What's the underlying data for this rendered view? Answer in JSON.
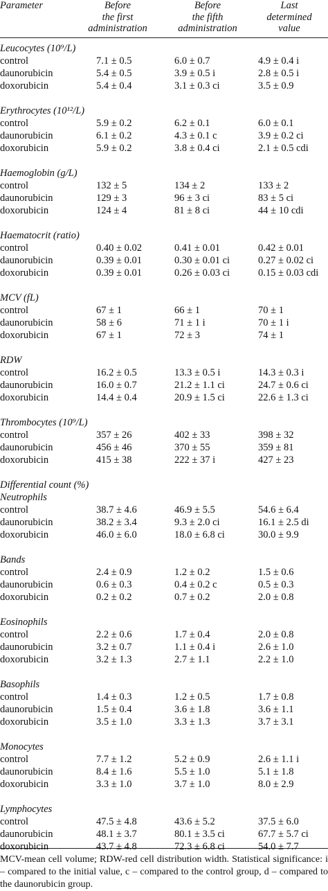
{
  "header": {
    "parameter": "Parameter",
    "columns": [
      [
        "Before",
        "the first",
        "administration"
      ],
      [
        "Before",
        "the fifth",
        "administration"
      ],
      [
        "Last",
        "determined",
        "value"
      ]
    ]
  },
  "sections": [
    {
      "title": "Leucocytes (10⁹/L)",
      "rows": [
        [
          "control",
          "7.1 ± 0.5",
          "6.0 ± 0.7",
          "4.9 ± 0.4 i"
        ],
        [
          "daunorubicin",
          "5.4 ± 0.5",
          "3.9 ± 0.5 i",
          "2.8 ± 0.5 i"
        ],
        [
          "doxorubicin",
          "5.4 ± 0.4",
          "3.1 ± 0.3 ci",
          "3.5 ± 0.9"
        ]
      ]
    },
    {
      "title": "Erythrocytes (10¹²/L)",
      "rows": [
        [
          "control",
          "5.9 ± 0.2",
          "6.2 ± 0.1",
          "6.0 ± 0.1"
        ],
        [
          "daunorubicin",
          "6.1 ± 0.2",
          "4.3 ± 0.1 c",
          "3.9 ± 0.2 ci"
        ],
        [
          "doxorubicin",
          "5.9 ± 0.2",
          "3.8 ± 0.4 ci",
          "2.1 ± 0.5 cdi"
        ]
      ]
    },
    {
      "title": "Haemoglobin (g/L)",
      "rows": [
        [
          "control",
          "132 ± 5",
          "134 ± 2",
          "133 ± 2"
        ],
        [
          "daunorubicin",
          "129 ± 3",
          "96 ± 3 ci",
          "83 ± 5 ci"
        ],
        [
          "doxorubicin",
          "124 ± 4",
          "81 ± 8 ci",
          "44 ± 10 cdi"
        ]
      ]
    },
    {
      "title": "Haematocrit (ratio)",
      "rows": [
        [
          "control",
          "0.40 ± 0.02",
          "0.41 ± 0.01",
          "0.42 ± 0.01"
        ],
        [
          "daunorubicin",
          "0.39 ± 0.01",
          "0.30 ± 0.01 ci",
          "0.27 ± 0.02 ci"
        ],
        [
          "doxorubicin",
          "0.39 ± 0.01",
          "0.26 ± 0.03 ci",
          "0.15 ± 0.03 cdi"
        ]
      ]
    },
    {
      "title": "MCV (fL)",
      "rows": [
        [
          "control",
          "67 ± 1",
          "66 ± 1",
          "70 ± 1"
        ],
        [
          "daunorubicin",
          "58 ± 6",
          "71 ± 1 i",
          "70 ± 1 i"
        ],
        [
          "doxorubicin",
          "67 ± 1",
          "72 ± 3",
          "74 ± 1"
        ]
      ]
    },
    {
      "title": "RDW",
      "rows": [
        [
          "control",
          "16.2 ± 0.5",
          "13.3 ± 0.5 i",
          "14.3 ± 0.3 i"
        ],
        [
          "daunorubicin",
          "16.0 ± 0.7",
          "21.2 ± 1.1 ci",
          "24.7 ± 0.6 ci"
        ],
        [
          "doxorubicin",
          "14.4 ± 0.4",
          "20.9 ± 1.5 ci",
          "22.6 ± 1.3 ci"
        ]
      ]
    },
    {
      "title": "Thrombocytes (10⁹/L)",
      "rows": [
        [
          "control",
          "357 ± 26",
          "402 ± 33",
          "398 ± 32"
        ],
        [
          "daunorubicin",
          "456 ± 46",
          "370 ± 55",
          "359 ± 81"
        ],
        [
          "doxorubicin",
          "415 ± 38",
          "222 ± 37 i",
          "427 ± 23"
        ]
      ]
    },
    {
      "pre_title": "Differential count (%)",
      "title": "Neutrophils",
      "rows": [
        [
          "control",
          "38.7 ± 4.6",
          "46.9 ± 5.5",
          "54.6 ± 6.4"
        ],
        [
          "daunorubicin",
          "38.2 ± 3.4",
          "9.3 ± 2.0 ci",
          "16.1 ± 2.5 di"
        ],
        [
          "doxorubicin",
          "46.0 ± 6.0",
          "18.0 ± 6.8 ci",
          "30.0 ± 9.9"
        ]
      ]
    },
    {
      "title": "Bands",
      "rows": [
        [
          "control",
          "2.4 ± 0.9",
          "1.2 ± 0.2",
          "1.5 ± 0.6"
        ],
        [
          "daunorubicin",
          "0.6 ± 0.3",
          "0.4 ± 0.2 c",
          "0.5 ± 0.3"
        ],
        [
          "doxorubicin",
          "0.2 ± 0.2",
          "0.7 ± 0.2",
          "2.0 ± 0.8"
        ]
      ]
    },
    {
      "title": "Eosinophils",
      "rows": [
        [
          "control",
          "2.2 ± 0.6",
          "1.7 ± 0.4",
          "2.0 ± 0.8"
        ],
        [
          "daunorubicin",
          "3.2 ± 0.7",
          "1.1 ± 0.4 i",
          "2.6 ± 1.0"
        ],
        [
          "doxorubicin",
          "3.2 ± 1.3",
          "2.7 ± 1.1",
          "2.2 ± 1.0"
        ]
      ]
    },
    {
      "title": "Basophils",
      "rows": [
        [
          "control",
          "1.4 ± 0.3",
          "1.2 ± 0.5",
          "1.7 ± 0.8"
        ],
        [
          "daunorubicin",
          "1.5 ± 0.4",
          "3.6 ± 1.8",
          "3.6 ± 1.1"
        ],
        [
          "doxorubicin",
          "3.5 ± 1.0",
          "3.3 ± 1.3",
          "3.7 ± 3.1"
        ]
      ]
    },
    {
      "title": "Monocytes",
      "rows": [
        [
          "control",
          "7.7 ± 1.2",
          "5.2 ± 0.9",
          "2.6 ± 1.1 i"
        ],
        [
          "daunorubicin",
          "8.4 ± 1.6",
          "5.5 ± 1.0",
          "5.1 ± 1.8"
        ],
        [
          "doxorubicin",
          "3.3 ± 1.0",
          "3.7 ± 1.0",
          "8.0 ± 2.9"
        ]
      ]
    },
    {
      "title": "Lymphocytes",
      "rows": [
        [
          "control",
          "47.5 ± 4.8",
          "43.6 ± 5.2",
          "37.5 ± 6.0"
        ],
        [
          "daunorubicin",
          "48.1 ± 3.7",
          "80.1 ± 3.5 ci",
          "67.7 ± 5.7 ci"
        ],
        [
          "doxorubicin",
          "43.7 ± 4.8",
          "72.3 ± 6.8 ci",
          "54.0 ± 7.7"
        ]
      ]
    }
  ],
  "footnote": "MCV-mean cell volume; RDW-red cell distribution width. Statistical significance: i – compared to the initial value, c – compared to the control group, d – compared to the daunorubicin group."
}
